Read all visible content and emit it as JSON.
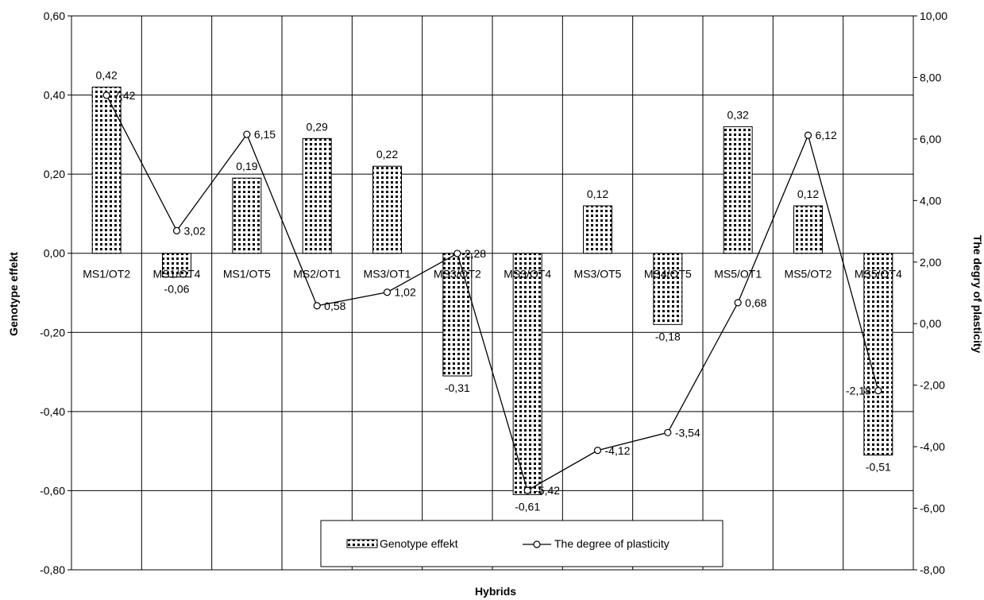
{
  "chart_data": {
    "type": "bar",
    "categories": [
      "MS1/OT2",
      "MS1/OT4",
      "MS1/OT5",
      "MS2/OT1",
      "MS3/OT1",
      "MS3/OT2",
      "MS3/OT4",
      "MS3/OT5",
      "MS4/OT5",
      "MS5/OT1",
      "MS5/OT2",
      "MS5/OT4"
    ],
    "series": [
      {
        "name": "Genotype effekt",
        "type": "bar",
        "axis": "left",
        "values": [
          0.42,
          -0.06,
          0.19,
          0.29,
          0.22,
          -0.31,
          -0.61,
          0.12,
          -0.18,
          0.32,
          0.12,
          -0.51
        ],
        "labels": [
          "0,42",
          "-0,06",
          "0,19",
          "0,29",
          "0,22",
          "-0,31",
          "-0,61",
          "0,12",
          "-0,18",
          "0,32",
          "0,12",
          "-0,51"
        ]
      },
      {
        "name": "The degree of plasticity",
        "type": "line",
        "axis": "right",
        "values": [
          7.42,
          3.02,
          6.15,
          0.58,
          1.02,
          2.28,
          -5.42,
          -4.12,
          -3.54,
          0.68,
          6.12,
          -2.18
        ],
        "labels": [
          "7,42",
          "3,02",
          "6,15",
          "0,58",
          "1,02",
          "2,28",
          "-5,42",
          "-4,12",
          "-3,54",
          "0,68",
          "6,12",
          "-2,18"
        ]
      }
    ],
    "xlabel": "Hybrids",
    "ylabel": "Genotype effekt",
    "y2label": "The degry of plasticity",
    "ylim": [
      -0.8,
      0.6
    ],
    "y2lim": [
      -8,
      10
    ],
    "yticks": [
      "0,60",
      "0,40",
      "0,20",
      "0,00",
      "-0,20",
      "-0,40",
      "-0,60",
      "-0,80"
    ],
    "yticks_values": [
      0.6,
      0.4,
      0.2,
      0.0,
      -0.2,
      -0.4,
      -0.6,
      -0.8
    ],
    "y2ticks": [
      "10,00",
      "8,00",
      "6,00",
      "4,00",
      "2,00",
      "0,00",
      "-2,00",
      "-4,00",
      "-6,00",
      "-8,00"
    ],
    "y2ticks_values": [
      10,
      8,
      6,
      4,
      2,
      0,
      -2,
      -4,
      -6,
      -8
    ],
    "grid": true,
    "legend_position": "bottom-center",
    "colors": {
      "bar_fill": "#ffffff",
      "bar_dots": "#000000",
      "line": "#000000",
      "grid": "#000000"
    }
  }
}
